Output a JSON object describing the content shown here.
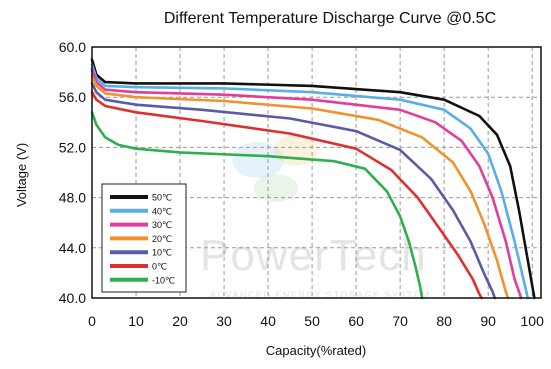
{
  "chart_data": {
    "type": "line",
    "title": "Different Temperature Discharge Curve @0.5C",
    "xlabel": "Capacity(%rated)",
    "ylabel": "Voltage (V)",
    "xlim": [
      0,
      102
    ],
    "ylim": [
      40,
      60
    ],
    "xticks": [
      0,
      10,
      20,
      30,
      40,
      50,
      60,
      70,
      80,
      90,
      100
    ],
    "yticks": [
      {
        "v": 40,
        "label": "40.0"
      },
      {
        "v": 44,
        "label": "44.0"
      },
      {
        "v": 48,
        "label": "48.0"
      },
      {
        "v": 52,
        "label": "52.0"
      },
      {
        "v": 56,
        "label": "56.0"
      },
      {
        "v": 60,
        "label": "60.0"
      }
    ],
    "grid": true,
    "grid_style": "dashed",
    "legend_position": "bottom-left",
    "series": [
      {
        "name": "50℃",
        "color": "#111111",
        "points": [
          [
            0,
            59
          ],
          [
            1,
            57.8
          ],
          [
            3,
            57.2
          ],
          [
            10,
            57.1
          ],
          [
            30,
            57.1
          ],
          [
            50,
            56.9
          ],
          [
            70,
            56.4
          ],
          [
            80,
            55.8
          ],
          [
            88,
            54.5
          ],
          [
            92,
            53
          ],
          [
            95,
            50.5
          ],
          [
            97,
            47
          ],
          [
            99,
            43
          ],
          [
            100.5,
            40
          ]
        ]
      },
      {
        "name": "40℃",
        "color": "#5aaee6",
        "points": [
          [
            0,
            58.6
          ],
          [
            1,
            57.5
          ],
          [
            3,
            56.9
          ],
          [
            10,
            56.8
          ],
          [
            30,
            56.7
          ],
          [
            50,
            56.4
          ],
          [
            70,
            55.8
          ],
          [
            80,
            55
          ],
          [
            86,
            53.5
          ],
          [
            90,
            51.5
          ],
          [
            93,
            48.5
          ],
          [
            96,
            44.5
          ],
          [
            98,
            41.5
          ],
          [
            99,
            40
          ]
        ]
      },
      {
        "name": "30℃",
        "color": "#e23d9a",
        "points": [
          [
            0,
            58.2
          ],
          [
            1,
            57.2
          ],
          [
            3,
            56.6
          ],
          [
            10,
            56.4
          ],
          [
            30,
            56.2
          ],
          [
            50,
            55.8
          ],
          [
            70,
            55
          ],
          [
            78,
            54
          ],
          [
            84,
            52.5
          ],
          [
            88,
            50.5
          ],
          [
            91,
            48
          ],
          [
            94,
            44.5
          ],
          [
            96,
            41.5
          ],
          [
            97.5,
            40
          ]
        ]
      },
      {
        "name": "20℃",
        "color": "#f0922e",
        "points": [
          [
            0,
            57.7
          ],
          [
            1,
            56.9
          ],
          [
            3,
            56.3
          ],
          [
            10,
            56
          ],
          [
            30,
            55.7
          ],
          [
            50,
            55.1
          ],
          [
            65,
            54.2
          ],
          [
            75,
            52.8
          ],
          [
            82,
            50.8
          ],
          [
            86,
            48.5
          ],
          [
            89,
            46
          ],
          [
            92,
            43
          ],
          [
            94,
            40.5
          ],
          [
            94.5,
            40
          ]
        ]
      },
      {
        "name": "10℃",
        "color": "#5a5ba6",
        "points": [
          [
            0,
            57.1
          ],
          [
            1,
            56.4
          ],
          [
            3,
            55.8
          ],
          [
            10,
            55.4
          ],
          [
            25,
            55
          ],
          [
            45,
            54.3
          ],
          [
            60,
            53.3
          ],
          [
            70,
            51.8
          ],
          [
            77,
            49.5
          ],
          [
            82,
            47
          ],
          [
            86,
            44.5
          ],
          [
            89,
            42
          ],
          [
            91,
            40.5
          ],
          [
            91.5,
            40
          ]
        ]
      },
      {
        "name": "0℃",
        "color": "#e02f2f",
        "points": [
          [
            0,
            56.4
          ],
          [
            1,
            55.8
          ],
          [
            3,
            55.3
          ],
          [
            10,
            54.8
          ],
          [
            25,
            54.1
          ],
          [
            45,
            53.1
          ],
          [
            60,
            51.9
          ],
          [
            68,
            50.2
          ],
          [
            74,
            48
          ],
          [
            79,
            45.5
          ],
          [
            83,
            43.5
          ],
          [
            86.5,
            41.5
          ],
          [
            88,
            40.3
          ],
          [
            88.5,
            40
          ]
        ]
      },
      {
        "name": "-10℃",
        "color": "#2fae4f",
        "points": [
          [
            0,
            54.8
          ],
          [
            1,
            53.8
          ],
          [
            3,
            52.8
          ],
          [
            6,
            52.2
          ],
          [
            10,
            51.9
          ],
          [
            20,
            51.6
          ],
          [
            40,
            51.3
          ],
          [
            55,
            50.9
          ],
          [
            62,
            50.3
          ],
          [
            67,
            48.5
          ],
          [
            70,
            46.5
          ],
          [
            72,
            44.5
          ],
          [
            73.5,
            42.5
          ],
          [
            74.5,
            41
          ],
          [
            75,
            40
          ]
        ]
      }
    ],
    "watermark": {
      "text": "PowerTech",
      "subtext": "ADVANCED ENERGY STORAGE SYSTEM"
    }
  }
}
